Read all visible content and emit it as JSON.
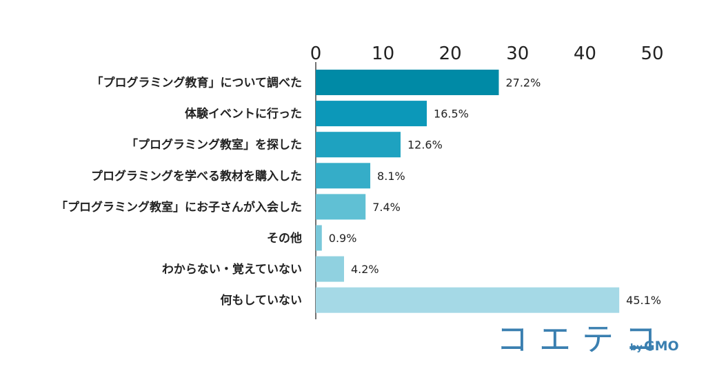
{
  "chart_data": {
    "type": "bar",
    "orientation": "horizontal",
    "categories": [
      "「プログラミング教育」について調べた",
      "体験イベントに行った",
      "「プログラミング教室」を探した",
      "プログラミングを学べる教材を購入した",
      "「プログラミング教室」にお子さんが入会した",
      "その他",
      "わからない・覚えていない",
      "何もしていない"
    ],
    "values": [
      27.2,
      16.5,
      12.6,
      8.1,
      7.4,
      0.9,
      4.2,
      45.1
    ],
    "data_labels": [
      "27.2%",
      "16.5%",
      "12.6%",
      "8.1%",
      "7.4%",
      "0.9%",
      "4.2%",
      "45.1%"
    ],
    "xlim": [
      0,
      50
    ],
    "xticks": [
      "0",
      "10",
      "20",
      "30",
      "40",
      "50"
    ],
    "axis_position": "top",
    "grid": false,
    "legend": "none",
    "colors": [
      "#008aa6",
      "#0c98b9",
      "#1ea2c0",
      "#35adc8",
      "#60c0d4",
      "#79c8da",
      "#90d1e0",
      "#a5d9e6"
    ]
  },
  "logo": {
    "text": "コエテコ",
    "by": "by",
    "brand": "GMO"
  }
}
